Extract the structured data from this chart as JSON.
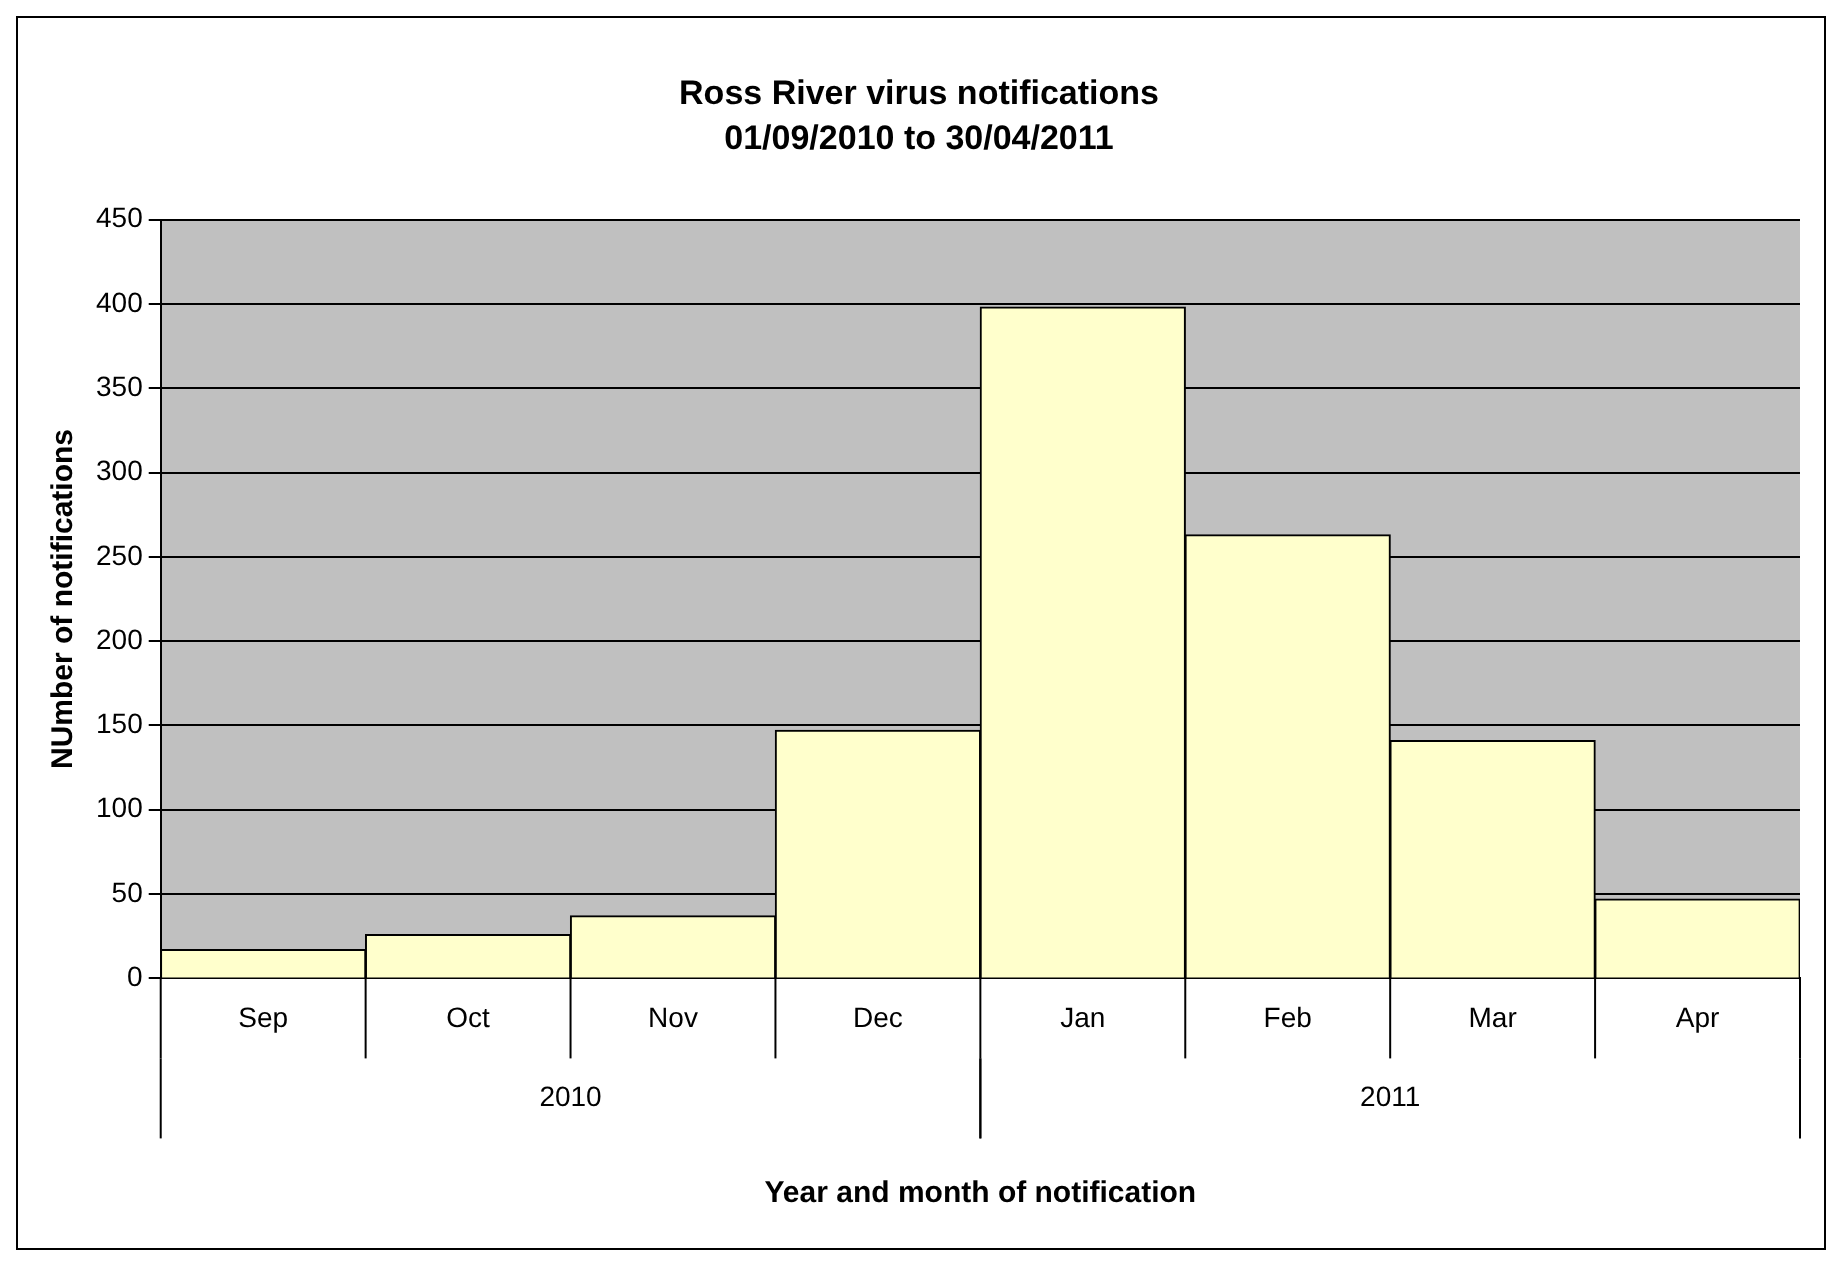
{
  "chart_data": {
    "type": "bar",
    "title": "Ross River virus notifications",
    "subtitle": "01/09/2010 to 30/04/2011",
    "xlabel": "Year and month of notification",
    "ylabel": "NUmber of notifications",
    "categories": [
      "Sep",
      "Oct",
      "Nov",
      "Dec",
      "Jan",
      "Feb",
      "Mar",
      "Apr"
    ],
    "values": [
      17,
      26,
      37,
      147,
      398,
      263,
      141,
      47
    ],
    "color": "#ffffcc",
    "ylim": [
      0,
      450
    ],
    "yticks": [
      0,
      50,
      100,
      150,
      200,
      250,
      300,
      350,
      400,
      450
    ],
    "grid": "y",
    "legend": false,
    "annotations": [
      "2010",
      "2011"
    ]
  }
}
